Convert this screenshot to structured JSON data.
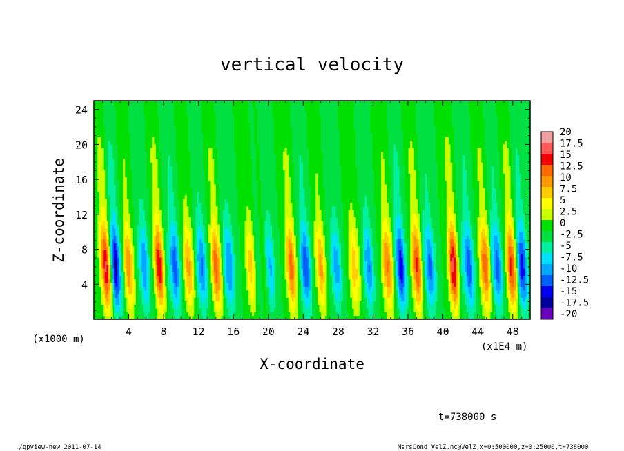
{
  "chart_data": {
    "type": "heatmap",
    "title": "vertical velocity",
    "xlabel": "X-coordinate",
    "ylabel": "Z-coordinate",
    "x_unit_note": "(x1E4 m)",
    "y_unit_note": "(x1000 m)",
    "xlim": [
      0,
      50
    ],
    "ylim": [
      0,
      25
    ],
    "x_ticks": [
      4,
      8,
      12,
      16,
      20,
      24,
      28,
      32,
      36,
      40,
      44,
      48
    ],
    "y_ticks": [
      4,
      8,
      12,
      16,
      20,
      24
    ],
    "colorbar": {
      "levels": [
        "20",
        "17.5",
        "15",
        "12.5",
        "10",
        "7.5",
        "5",
        "2.5",
        "0",
        "-2.5",
        "-5",
        "-7.5",
        "-10",
        "-12.5",
        "-15",
        "-17.5",
        "-20"
      ],
      "colors": [
        "#f0a0a0",
        "#ff5a5a",
        "#f00000",
        "#ff6a00",
        "#ff9900",
        "#ffcc00",
        "#ffff00",
        "#ccff00",
        "#00e000",
        "#00e040",
        "#00f0a0",
        "#00e0ff",
        "#00a8ff",
        "#0060ff",
        "#0000f0",
        "#0000a0",
        "#6a00c0"
      ]
    },
    "wave_columns_x": [
      1.3,
      2.6,
      4.0,
      5.8,
      7.5,
      9.3,
      10.8,
      12.4,
      14.0,
      15.6,
      18.0,
      20.2,
      22.6,
      24.3,
      26.0,
      27.8,
      29.8,
      31.5,
      33.6,
      35.2,
      37.0,
      38.6,
      41.2,
      43.0,
      44.8,
      46.3,
      47.8,
      49.2
    ],
    "wave_amplitudes": [
      15,
      -12,
      12,
      -10,
      17,
      -12,
      10,
      -10,
      14,
      -9,
      9,
      -8,
      14,
      -12,
      11,
      -9,
      9,
      -10,
      12,
      -14,
      15,
      -10,
      18,
      -12,
      13,
      -10,
      14,
      -11
    ]
  },
  "footer": {
    "time_label": "t=738000 s",
    "program_label": "./gpview-new   2011-07-14",
    "source_label": "MarsCond_VelZ.nc@VelZ,x=0:500000,z=0:25000,t=738000"
  }
}
